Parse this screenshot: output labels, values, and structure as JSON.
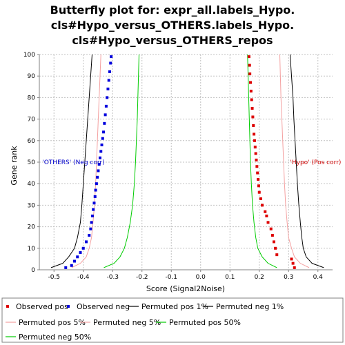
{
  "chart_data": {
    "type": "line",
    "title_lines": [
      "Butterfly plot for: expr_all.labels_Hypo.",
      "cls#Hypo_versus_OTHERS.labels_Hypo.",
      "cls#Hypo_versus_OTHERS_repos"
    ],
    "xlabel": "Score (Signal2Noise)",
    "ylabel": "Gene rank",
    "xlim": [
      -0.55,
      0.45
    ],
    "ylim": [
      0,
      100
    ],
    "x_ticks": [
      -0.5,
      -0.4,
      -0.3,
      -0.2,
      -0.1,
      0.0,
      0.1,
      0.2,
      0.3,
      0.4
    ],
    "x_tick_labels": [
      "-0.5",
      "-0.4",
      "-0.3",
      "-0.2",
      "-0.1",
      "0.0",
      "0.1",
      "0.2",
      "0.3",
      "0.4"
    ],
    "y_ticks": [
      0,
      10,
      20,
      30,
      40,
      50,
      60,
      70,
      80,
      90,
      100
    ],
    "y_tick_labels": [
      "0",
      "10",
      "20",
      "30",
      "40",
      "50",
      "60",
      "70",
      "80",
      "90",
      "100"
    ],
    "grid": true,
    "legend_placement": "bottom",
    "annotations": [
      {
        "text": "'OTHERS' (Neg corr)",
        "x": -0.54,
        "y": 50,
        "color": "#0000cc"
      },
      {
        "text": "'Hypo' (Pos corr)",
        "x": 0.305,
        "y": 50,
        "color": "#cc0000"
      }
    ],
    "series": [
      {
        "name": "Observed pos",
        "style": "points",
        "color": "#dd0000",
        "x": [
          0.165,
          0.167,
          0.168,
          0.17,
          0.172,
          0.174,
          0.176,
          0.178,
          0.18,
          0.182,
          0.184,
          0.186,
          0.188,
          0.19,
          0.192,
          0.194,
          0.196,
          0.198,
          0.2,
          0.205,
          0.21,
          0.22,
          0.225,
          0.23,
          0.24,
          0.245,
          0.25,
          0.255,
          0.26,
          0.31,
          0.315,
          0.32
        ],
        "y": [
          99,
          95,
          91,
          87,
          83,
          79,
          75,
          71,
          67,
          63,
          60,
          57,
          54,
          51,
          48,
          45,
          42,
          39,
          36,
          33,
          30,
          27,
          25,
          22,
          19,
          16,
          13,
          10,
          7,
          5,
          3,
          1
        ]
      },
      {
        "name": "Observed neg",
        "style": "points",
        "color": "#0000dd",
        "x": [
          -0.305,
          -0.307,
          -0.31,
          -0.313,
          -0.316,
          -0.319,
          -0.322,
          -0.325,
          -0.328,
          -0.331,
          -0.334,
          -0.337,
          -0.34,
          -0.343,
          -0.346,
          -0.349,
          -0.352,
          -0.355,
          -0.358,
          -0.36,
          -0.363,
          -0.366,
          -0.369,
          -0.372,
          -0.375,
          -0.38,
          -0.39,
          -0.4,
          -0.41,
          -0.42,
          -0.43,
          -0.44,
          -0.46
        ],
        "y": [
          99,
          96,
          92,
          88,
          84,
          80,
          76,
          72,
          68,
          64,
          61,
          58,
          55,
          52,
          49,
          46,
          43,
          40,
          37,
          34,
          31,
          28,
          25,
          22,
          19,
          16,
          13,
          10,
          8,
          6,
          4,
          2,
          1
        ]
      },
      {
        "name": "Permuted pos 1%",
        "style": "line",
        "color": "#000000",
        "x": [
          0.305,
          0.31,
          0.315,
          0.318,
          0.322,
          0.326,
          0.33,
          0.335,
          0.34,
          0.345,
          0.35,
          0.36,
          0.38,
          0.42
        ],
        "y": [
          100,
          90,
          80,
          70,
          60,
          50,
          40,
          30,
          22,
          15,
          10,
          6,
          3,
          1
        ]
      },
      {
        "name": "Permuted neg 1%",
        "style": "line",
        "color": "#000000",
        "x": [
          -0.37,
          -0.375,
          -0.38,
          -0.385,
          -0.39,
          -0.395,
          -0.4,
          -0.405,
          -0.41,
          -0.42,
          -0.43,
          -0.45,
          -0.47,
          -0.51
        ],
        "y": [
          100,
          90,
          80,
          70,
          60,
          50,
          40,
          30,
          22,
          15,
          10,
          6,
          3,
          1
        ]
      },
      {
        "name": "Permuted pos 5%",
        "style": "line",
        "color": "#f4a0a0",
        "x": [
          0.27,
          0.272,
          0.274,
          0.277,
          0.28,
          0.283,
          0.286,
          0.29,
          0.295,
          0.3,
          0.31,
          0.32,
          0.34,
          0.37
        ],
        "y": [
          100,
          90,
          80,
          70,
          60,
          50,
          40,
          30,
          22,
          15,
          10,
          6,
          3,
          1
        ]
      },
      {
        "name": "Permuted neg 5%",
        "style": "line",
        "color": "#f4a0a0",
        "x": [
          -0.34,
          -0.343,
          -0.346,
          -0.349,
          -0.352,
          -0.355,
          -0.358,
          -0.362,
          -0.367,
          -0.372,
          -0.38,
          -0.39,
          -0.41,
          -0.44
        ],
        "y": [
          100,
          90,
          80,
          70,
          60,
          50,
          40,
          30,
          22,
          15,
          10,
          6,
          3,
          1
        ]
      },
      {
        "name": "Permuted pos 50%",
        "style": "line",
        "color": "#00cc00",
        "x": [
          0.16,
          0.162,
          0.164,
          0.166,
          0.168,
          0.17,
          0.173,
          0.177,
          0.182,
          0.188,
          0.195,
          0.21,
          0.23,
          0.26
        ],
        "y": [
          100,
          90,
          80,
          70,
          60,
          50,
          40,
          30,
          22,
          15,
          10,
          6,
          3,
          1
        ]
      },
      {
        "name": "Permuted neg 50%",
        "style": "line",
        "color": "#00cc00",
        "x": [
          -0.21,
          -0.212,
          -0.214,
          -0.216,
          -0.219,
          -0.222,
          -0.226,
          -0.232,
          -0.24,
          -0.25,
          -0.26,
          -0.275,
          -0.295,
          -0.33
        ],
        "y": [
          100,
          90,
          80,
          70,
          60,
          50,
          40,
          30,
          22,
          15,
          10,
          6,
          3,
          1
        ]
      }
    ]
  }
}
